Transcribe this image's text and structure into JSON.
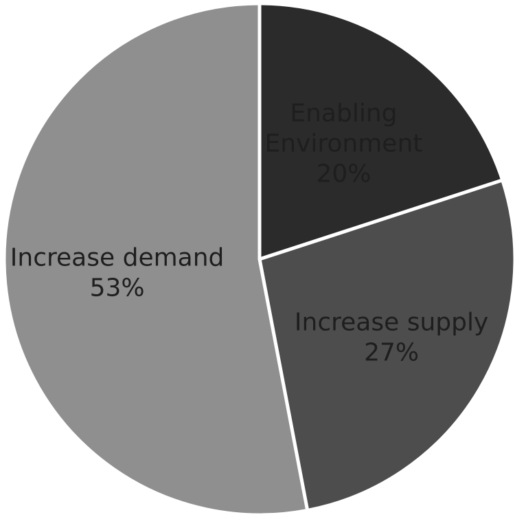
{
  "chart_data": {
    "type": "pie",
    "slices": [
      {
        "label_lines": [
          "Enabling",
          "Environment"
        ],
        "percent_label": "20%",
        "value": 20,
        "color": "#2b2b2b"
      },
      {
        "label_lines": [
          "Increase supply"
        ],
        "percent_label": "27%",
        "value": 27,
        "color": "#4d4d4d"
      },
      {
        "label_lines": [
          "Increase demand"
        ],
        "percent_label": "53%",
        "value": 53,
        "color": "#8f8f8f"
      }
    ],
    "start_angle_deg": 0,
    "direction": "clockwise",
    "legend": "none"
  }
}
